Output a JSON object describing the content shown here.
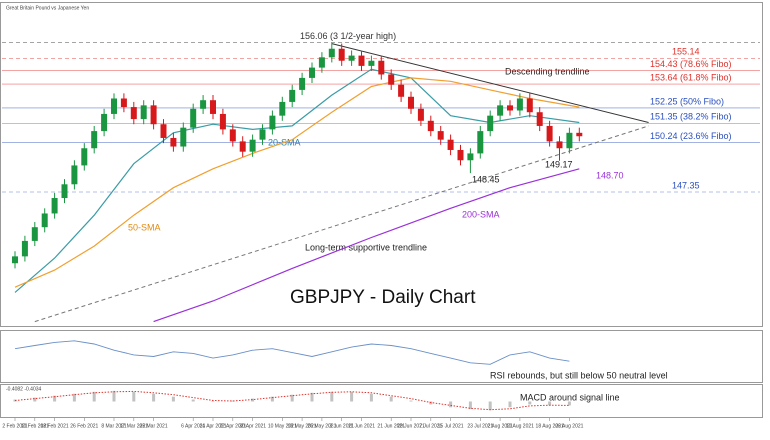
{
  "chart_data": {
    "type": "candlestick",
    "title": "GBPJPY - Daily Chart",
    "subtitle": "Great Britain Pound vs Japanese Yen",
    "ylim": [
      139.6,
      156.5
    ],
    "open": [
      143.2,
      143.6,
      144.5,
      145.3,
      146.1,
      147.0,
      147.8,
      148.9,
      149.9,
      150.9,
      151.9,
      152.8,
      152.3,
      151.6,
      152.4,
      151.3,
      150.5,
      150.0,
      151.1,
      152.2,
      152.7,
      151.9,
      151.0,
      150.3,
      149.7,
      150.4,
      151.0,
      151.8,
      152.6,
      153.3,
      154.0,
      154.6,
      155.2,
      155.7,
      155.0,
      155.3,
      154.7,
      155.0,
      154.2,
      153.6,
      152.9,
      152.2,
      151.5,
      150.9,
      150.4,
      149.8,
      149.2,
      149.6,
      150.9,
      151.8,
      152.4,
      152.1,
      152.8,
      152.0,
      151.2,
      150.3,
      149.9,
      150.8
    ],
    "high": [
      143.9,
      144.8,
      145.6,
      146.4,
      147.3,
      148.1,
      149.2,
      150.2,
      151.2,
      152.2,
      153.1,
      153.1,
      152.6,
      152.7,
      152.7,
      151.6,
      150.8,
      151.4,
      152.5,
      153.0,
      153.0,
      152.2,
      151.3,
      150.6,
      150.7,
      151.3,
      152.1,
      152.9,
      153.6,
      154.3,
      154.9,
      155.5,
      156.06,
      156.0,
      155.6,
      155.6,
      155.3,
      155.3,
      154.5,
      153.9,
      153.2,
      152.5,
      151.8,
      151.2,
      150.7,
      150.1,
      149.9,
      151.2,
      152.1,
      152.7,
      152.7,
      153.1,
      153.1,
      152.3,
      151.5,
      150.6,
      151.1,
      151.1
    ],
    "low": [
      142.9,
      143.3,
      144.2,
      145.0,
      145.8,
      146.7,
      147.5,
      148.6,
      149.6,
      150.6,
      151.6,
      152.0,
      151.3,
      151.3,
      151.0,
      150.2,
      149.7,
      149.7,
      150.8,
      151.9,
      151.6,
      150.7,
      150.0,
      149.4,
      149.4,
      150.1,
      150.7,
      151.5,
      152.3,
      153.0,
      153.7,
      154.3,
      154.9,
      154.7,
      154.7,
      154.4,
      154.4,
      153.9,
      153.3,
      152.6,
      151.9,
      151.2,
      150.6,
      150.1,
      149.5,
      148.9,
      148.45,
      149.3,
      150.6,
      151.5,
      151.8,
      151.8,
      151.7,
      150.9,
      150.0,
      149.17,
      149.6,
      150.3
    ],
    "close": [
      143.6,
      144.5,
      145.3,
      146.1,
      147.0,
      147.8,
      148.9,
      149.9,
      150.9,
      151.9,
      152.8,
      152.3,
      151.6,
      152.4,
      151.3,
      150.5,
      150.0,
      151.1,
      152.2,
      152.7,
      151.9,
      151.0,
      150.3,
      149.7,
      150.4,
      151.0,
      151.8,
      152.6,
      153.3,
      154.0,
      154.6,
      155.2,
      155.7,
      155.0,
      155.3,
      154.7,
      155.0,
      154.2,
      153.6,
      152.9,
      152.2,
      151.5,
      150.9,
      150.4,
      149.8,
      149.2,
      149.6,
      150.9,
      151.8,
      152.4,
      152.1,
      152.8,
      152.0,
      151.2,
      150.3,
      149.9,
      150.8,
      150.6
    ],
    "up_color": "#1a9641",
    "down_color": "#d7191c",
    "series": [
      {
        "name": "20-SMA",
        "color": "#3a9ca6",
        "x": [
          0,
          4,
          8,
          12,
          16,
          20,
          24,
          28,
          32,
          36,
          40,
          44,
          48,
          52,
          57
        ],
        "values": [
          141.5,
          143.5,
          146.0,
          149.0,
          150.8,
          151.3,
          151.0,
          151.2,
          153.0,
          154.5,
          154.0,
          151.8,
          151.4,
          151.8,
          151.4
        ]
      },
      {
        "name": "50-SMA",
        "color": "#f0a030",
        "x": [
          0,
          4,
          8,
          12,
          16,
          20,
          24,
          28,
          32,
          36,
          40,
          44,
          48,
          52,
          57
        ],
        "values": [
          141.8,
          142.8,
          144.2,
          146.0,
          147.6,
          148.7,
          149.6,
          150.4,
          152.0,
          153.5,
          154.0,
          153.8,
          153.3,
          152.8,
          152.3
        ]
      },
      {
        "name": "200-SMA",
        "color": "#9b30d9",
        "x": [
          14,
          20,
          28,
          36,
          44,
          50,
          57
        ],
        "values": [
          139.8,
          141.0,
          142.9,
          144.7,
          146.4,
          147.6,
          148.7
        ]
      }
    ],
    "trendlines": [
      {
        "name": "Descending trendline",
        "color": "#333333",
        "x": [
          32,
          64
        ],
        "values": [
          156.0,
          151.4
        ]
      },
      {
        "name": "Long-term supportive trendline",
        "color": "#777777",
        "x": [
          2,
          64
        ],
        "values": [
          139.8,
          151.2
        ]
      }
    ],
    "levels": [
      {
        "label": "156.06 (3 1/2-year high)",
        "value": 156.06,
        "color": "#333333"
      },
      {
        "label": "155.14",
        "value": 155.14,
        "color": "#e0302a"
      },
      {
        "label": "154.43 (78.6% Fibo)",
        "value": 154.43,
        "color": "#e0302a"
      },
      {
        "label": "153.64 (61.8% Fibo)",
        "value": 153.64,
        "color": "#e0302a"
      },
      {
        "label": "152.25 (50% Fibo)",
        "value": 152.25,
        "color": "#2a4fc0"
      },
      {
        "label": "151.35 (38.2% Fibo)",
        "value": 151.35,
        "color": "#2a4fc0"
      },
      {
        "label": "150.24 (23.6% Fibo)",
        "value": 150.24,
        "color": "#2a4fc0"
      },
      {
        "label": "147.35",
        "value": 147.35,
        "color": "#2a4fc0"
      }
    ],
    "annotations": [
      "148.45",
      "149.17",
      "148.70"
    ],
    "xticks": [
      {
        "value": 0,
        "label": "2 Feb 2021"
      },
      {
        "value": 2,
        "label": "10 Feb 2021"
      },
      {
        "value": 4,
        "label": "18 Feb 2021"
      },
      {
        "value": 7,
        "label": "26 Feb 2021"
      },
      {
        "value": 10,
        "label": "8 Mar 2021"
      },
      {
        "value": 12,
        "label": "17 Mar 2021"
      },
      {
        "value": 14,
        "label": "25 Mar 2021"
      },
      {
        "value": 18,
        "label": "6 Apr 2021"
      },
      {
        "value": 20,
        "label": "14 Apr 2021"
      },
      {
        "value": 22,
        "label": "22 Apr 2021"
      },
      {
        "value": 24,
        "label": "30 Apr 2021"
      },
      {
        "value": 27,
        "label": "10 May 2021"
      },
      {
        "value": 29,
        "label": "18 May 2021"
      },
      {
        "value": 31,
        "label": "26 May 2021"
      },
      {
        "value": 33,
        "label": "3 Jun 2021"
      },
      {
        "value": 35,
        "label": "11 Jun 2021"
      },
      {
        "value": 38,
        "label": "21 Jun 2021"
      },
      {
        "value": 40,
        "label": "29 Jun 2021"
      },
      {
        "value": 42,
        "label": "7 Jul 2021"
      },
      {
        "value": 44,
        "label": "15 Jul 2021"
      },
      {
        "value": 47,
        "label": "23 Jul 2021"
      },
      {
        "value": 49,
        "label": "2 Aug 2021"
      },
      {
        "value": 51,
        "label": "10 Aug 2021"
      },
      {
        "value": 54,
        "label": "18 Aug 2021"
      },
      {
        "value": 56,
        "label": "26 Aug 2021"
      }
    ],
    "rsi": {
      "note": "RSI rebounds, but still below 50 neutral level",
      "ylim": [
        20,
        80
      ],
      "color": "#6a8fc8",
      "x": [
        0,
        2,
        4,
        6,
        8,
        10,
        12,
        14,
        16,
        18,
        20,
        22,
        24,
        26,
        28,
        30,
        32,
        34,
        36,
        38,
        40,
        42,
        44,
        46,
        48,
        50,
        52,
        54,
        56
      ],
      "values": [
        60,
        64,
        68,
        70,
        66,
        58,
        52,
        50,
        56,
        54,
        48,
        52,
        58,
        60,
        55,
        50,
        56,
        62,
        66,
        64,
        60,
        54,
        48,
        42,
        40,
        52,
        56,
        48,
        44
      ]
    },
    "macd": {
      "note": "MACD around signal line",
      "readout": "-0.4082  -0.4034",
      "ylim": [
        -1.5,
        1.5
      ],
      "color": "#999999",
      "signal_color": "#e0302a",
      "x": [
        0,
        2,
        4,
        6,
        8,
        10,
        12,
        14,
        16,
        18,
        20,
        22,
        24,
        26,
        28,
        30,
        32,
        34,
        36,
        38,
        40,
        42,
        44,
        46,
        48,
        50,
        52,
        54,
        56
      ],
      "values": [
        0.2,
        0.4,
        0.6,
        0.8,
        1.0,
        1.1,
        1.0,
        0.8,
        0.5,
        0.2,
        0.0,
        0.1,
        0.3,
        0.5,
        0.7,
        0.9,
        1.0,
        1.0,
        0.8,
        0.5,
        0.1,
        -0.3,
        -0.6,
        -0.8,
        -0.9,
        -0.6,
        -0.3,
        -0.4,
        -0.41
      ],
      "signal": [
        0.1,
        0.3,
        0.5,
        0.7,
        0.9,
        1.0,
        1.05,
        0.9,
        0.7,
        0.4,
        0.1,
        0.05,
        0.2,
        0.4,
        0.6,
        0.8,
        0.95,
        1.0,
        0.9,
        0.6,
        0.3,
        -0.1,
        -0.4,
        -0.7,
        -0.85,
        -0.75,
        -0.45,
        -0.38,
        -0.4
      ]
    }
  }
}
